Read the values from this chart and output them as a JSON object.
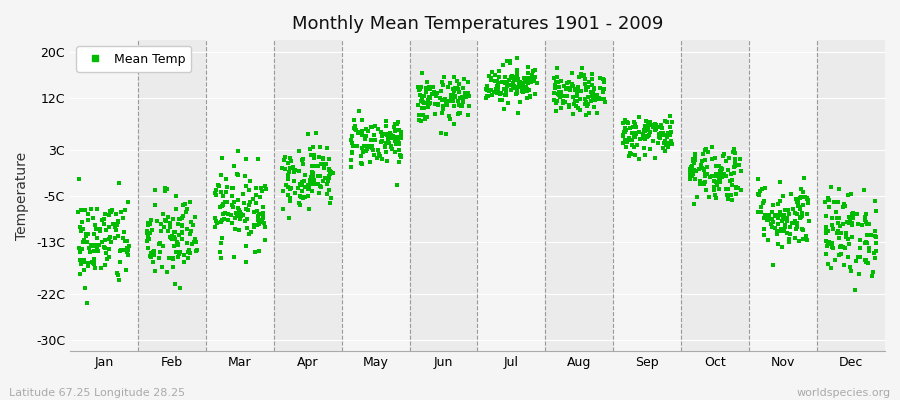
{
  "title": "Monthly Mean Temperatures 1901 - 2009",
  "ylabel": "Temperature",
  "subtitle_left": "Latitude 67.25 Longitude 28.25",
  "subtitle_right": "worldspecies.org",
  "months": [
    "Jan",
    "Feb",
    "Mar",
    "Apr",
    "May",
    "Jun",
    "Jul",
    "Aug",
    "Sep",
    "Oct",
    "Nov",
    "Dec"
  ],
  "dot_color": "#00bb00",
  "yticks": [
    -30,
    -22,
    -13,
    -5,
    3,
    12,
    20
  ],
  "ytick_labels": [
    "-30C",
    "-22C",
    "-13C",
    "-5C",
    "3C",
    "12C",
    "20C"
  ],
  "ylim": [
    -32,
    22
  ],
  "n_years": 109,
  "monthly_params": {
    "Jan": {
      "mean": -13.0,
      "std": 4.0
    },
    "Feb": {
      "mean": -12.5,
      "std": 4.0
    },
    "Mar": {
      "mean": -7.0,
      "std": 3.5
    },
    "Apr": {
      "mean": -1.5,
      "std": 2.8
    },
    "May": {
      "mean": 4.5,
      "std": 2.2
    },
    "Jun": {
      "mean": 11.5,
      "std": 2.0
    },
    "Jul": {
      "mean": 14.5,
      "std": 1.8
    },
    "Aug": {
      "mean": 12.5,
      "std": 1.8
    },
    "Sep": {
      "mean": 5.5,
      "std": 1.8
    },
    "Oct": {
      "mean": -1.0,
      "std": 2.5
    },
    "Nov": {
      "mean": -8.5,
      "std": 3.0
    },
    "Dec": {
      "mean": -11.5,
      "std": 3.8
    }
  },
  "bg_even": "#ebebeb",
  "bg_odd": "#f5f5f5",
  "fig_bg": "#f5f5f5"
}
